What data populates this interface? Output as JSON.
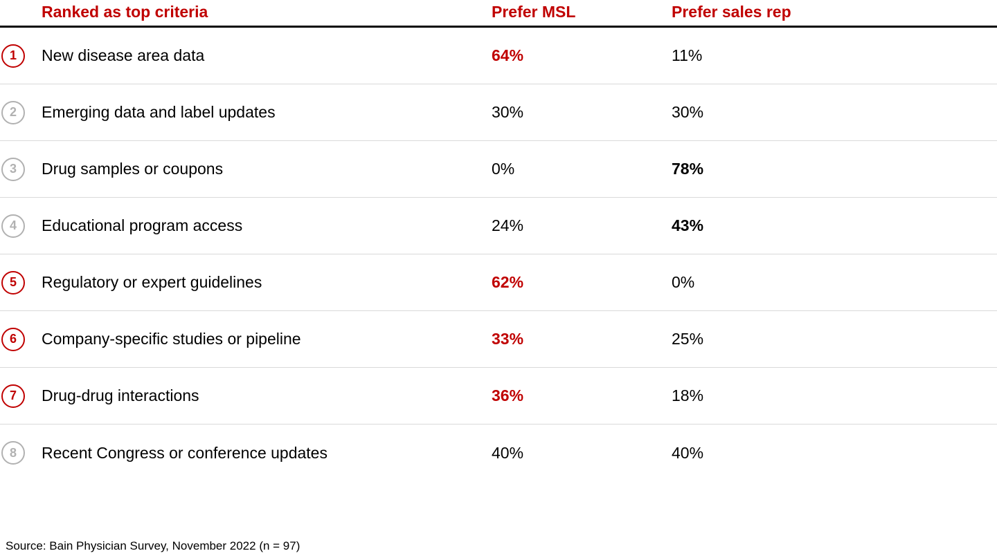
{
  "accent_color": "#c00000",
  "muted_color": "#b1b1b1",
  "header": {
    "criteria": "Ranked as top criteria",
    "msl": "Prefer MSL",
    "rep": "Prefer sales rep"
  },
  "rows": [
    {
      "rank": "1",
      "rank_style": "red",
      "label": "New disease area data",
      "msl": "64%",
      "msl_style": "red-bold",
      "rep": "11%",
      "rep_style": "normal"
    },
    {
      "rank": "2",
      "rank_style": "gray",
      "label": "Emerging data and label updates",
      "msl": "30%",
      "msl_style": "normal",
      "rep": "30%",
      "rep_style": "normal"
    },
    {
      "rank": "3",
      "rank_style": "gray",
      "label": "Drug samples or coupons",
      "msl": "0%",
      "msl_style": "normal",
      "rep": "78%",
      "rep_style": "bold"
    },
    {
      "rank": "4",
      "rank_style": "gray",
      "label": "Educational program access",
      "msl": "24%",
      "msl_style": "normal",
      "rep": "43%",
      "rep_style": "bold"
    },
    {
      "rank": "5",
      "rank_style": "red",
      "label": "Regulatory or expert guidelines",
      "msl": "62%",
      "msl_style": "red-bold",
      "rep": "0%",
      "rep_style": "normal"
    },
    {
      "rank": "6",
      "rank_style": "red",
      "label": "Company-specific studies or pipeline",
      "msl": "33%",
      "msl_style": "red-bold",
      "rep": "25%",
      "rep_style": "normal"
    },
    {
      "rank": "7",
      "rank_style": "red",
      "label": "Drug-drug interactions",
      "msl": "36%",
      "msl_style": "red-bold",
      "rep": "18%",
      "rep_style": "normal"
    },
    {
      "rank": "8",
      "rank_style": "gray",
      "label": "Recent Congress or conference updates",
      "msl": "40%",
      "msl_style": "normal",
      "rep": "40%",
      "rep_style": "normal"
    }
  ],
  "source": "Source: Bain Physician Survey, November 2022 (n = 97)",
  "chart_data": {
    "type": "table",
    "title": "",
    "columns": [
      "Ranked as top criteria",
      "Prefer MSL",
      "Prefer sales rep"
    ],
    "rows": [
      {
        "rank": 1,
        "criteria": "New disease area data",
        "prefer_msl_pct": 64,
        "prefer_sales_rep_pct": 11,
        "highlight": "msl"
      },
      {
        "rank": 2,
        "criteria": "Emerging data and label updates",
        "prefer_msl_pct": 30,
        "prefer_sales_rep_pct": 30,
        "highlight": "none"
      },
      {
        "rank": 3,
        "criteria": "Drug samples or coupons",
        "prefer_msl_pct": 0,
        "prefer_sales_rep_pct": 78,
        "highlight": "sales_rep"
      },
      {
        "rank": 4,
        "criteria": "Educational program access",
        "prefer_msl_pct": 24,
        "prefer_sales_rep_pct": 43,
        "highlight": "sales_rep"
      },
      {
        "rank": 5,
        "criteria": "Regulatory or expert guidelines",
        "prefer_msl_pct": 62,
        "prefer_sales_rep_pct": 0,
        "highlight": "msl"
      },
      {
        "rank": 6,
        "criteria": "Company-specific studies or pipeline",
        "prefer_msl_pct": 33,
        "prefer_sales_rep_pct": 25,
        "highlight": "msl"
      },
      {
        "rank": 7,
        "criteria": "Drug-drug interactions",
        "prefer_msl_pct": 36,
        "prefer_sales_rep_pct": 18,
        "highlight": "msl"
      },
      {
        "rank": 8,
        "criteria": "Recent Congress or conference updates",
        "prefer_msl_pct": 40,
        "prefer_sales_rep_pct": 40,
        "highlight": "none"
      }
    ],
    "source": "Source: Bain Physician Survey, November 2022 (n = 97)"
  }
}
